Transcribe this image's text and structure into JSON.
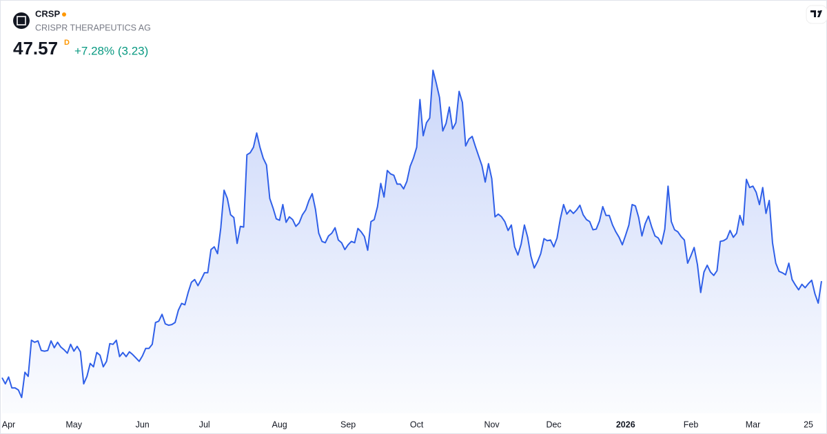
{
  "header": {
    "symbol": "CRSP",
    "name": "CRISPR THERAPEUTICS AG",
    "price": 47.57,
    "interval": "D",
    "change": "+7.28% (3.23)"
  },
  "chart_data": {
    "type": "area",
    "color": "#2f5fe8",
    "values": [
      33.4,
      32.5,
      33.5,
      31.9,
      31.9,
      31.6,
      30.5,
      34.2,
      33.6,
      38.9,
      38.6,
      38.8,
      37.4,
      37.3,
      37.4,
      38.8,
      37.8,
      38.6,
      37.9,
      37.5,
      37.0,
      38.3,
      37.3,
      38.0,
      37.2,
      32.5,
      33.6,
      35.5,
      35.0,
      37.1,
      36.7,
      35.0,
      35.8,
      38.4,
      38.3,
      38.9,
      36.5,
      37.1,
      36.5,
      37.2,
      36.8,
      36.3,
      35.8,
      36.6,
      37.7,
      37.7,
      38.3,
      41.5,
      41.7,
      42.7,
      41.3,
      41.1,
      41.2,
      41.5,
      43.3,
      44.3,
      44.1,
      45.9,
      47.4,
      47.8,
      46.9,
      47.8,
      48.8,
      48.8,
      52.2,
      52.6,
      51.6,
      55.4,
      60.9,
      59.7,
      57.3,
      56.9,
      53.1,
      55.6,
      55.5,
      66.1,
      66.4,
      67.2,
      69.3,
      67.2,
      65.6,
      64.6,
      59.7,
      58.3,
      56.7,
      56.5,
      58.8,
      56.2,
      57.0,
      56.6,
      55.6,
      56.1,
      57.3,
      58.0,
      59.4,
      60.4,
      58.1,
      54.6,
      53.4,
      53.2,
      54.2,
      54.6,
      55.4,
      53.6,
      53.2,
      52.2,
      52.9,
      53.4,
      53.2,
      55.3,
      54.8,
      54.1,
      52.1,
      56.3,
      56.6,
      58.5,
      61.9,
      59.9,
      63.8,
      63.3,
      63.1,
      61.8,
      61.8,
      61.1,
      62.2,
      64.4,
      65.6,
      67.2,
      74.2,
      68.9,
      70.8,
      71.5,
      78.5,
      76.6,
      74.5,
      69.6,
      70.7,
      73.1,
      69.9,
      70.8,
      75.4,
      73.8,
      67.4,
      68.4,
      68.8,
      67.3,
      65.9,
      64.5,
      62.1,
      64.8,
      62.6,
      57.0,
      57.4,
      57.0,
      56.3,
      55.0,
      55.8,
      52.6,
      51.4,
      53.0,
      55.8,
      54.0,
      51.2,
      49.5,
      50.4,
      51.6,
      53.8,
      53.5,
      53.6,
      52.6,
      53.9,
      56.7,
      58.8,
      57.4,
      58.0,
      57.5,
      58.0,
      58.7,
      57.3,
      56.6,
      56.3,
      55.1,
      55.2,
      56.4,
      58.5,
      57.2,
      57.2,
      55.8,
      54.8,
      54.0,
      52.9,
      54.3,
      55.8,
      58.8,
      58.6,
      56.9,
      54.2,
      56.0,
      57.1,
      55.5,
      54.2,
      53.9,
      53.0,
      55.2,
      61.5,
      56.3,
      55.1,
      54.8,
      54.1,
      53.6,
      50.2,
      51.3,
      52.5,
      50.0,
      45.9,
      48.9,
      49.9,
      48.9,
      48.4,
      49.1,
      53.4,
      53.5,
      53.8,
      55.0,
      54.0,
      54.6,
      57.2,
      55.8,
      62.5,
      61.3,
      61.5,
      60.6,
      58.8,
      61.3,
      57.5,
      59.4,
      53.2,
      50.2,
      49.0,
      48.8,
      48.5,
      50.2,
      47.8,
      47.0,
      46.3,
      47.1,
      46.6,
      47.2,
      47.7,
      45.7,
      44.34,
      47.57
    ],
    "xticks": [
      {
        "value": 2,
        "label": "Apr"
      },
      {
        "value": 22,
        "label": "May"
      },
      {
        "value": 43,
        "label": "Jun"
      },
      {
        "value": 62,
        "label": "Jul"
      },
      {
        "value": 85,
        "label": "Aug"
      },
      {
        "value": 106,
        "label": "Sep"
      },
      {
        "value": 127,
        "label": "Oct"
      },
      {
        "value": 150,
        "label": "Nov"
      },
      {
        "value": 169,
        "label": "Dec"
      },
      {
        "value": 191,
        "label": "2026",
        "bold": true
      },
      {
        "value": 211,
        "label": "Feb"
      },
      {
        "value": 230,
        "label": "Mar"
      },
      {
        "value": 247,
        "label": "25"
      }
    ]
  }
}
